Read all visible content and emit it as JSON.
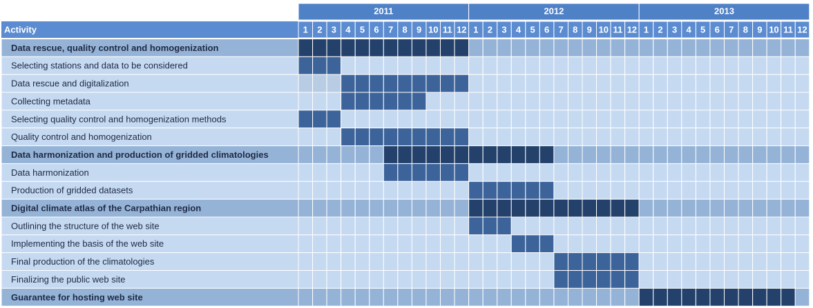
{
  "chart_data": {
    "type": "gantt",
    "header": {
      "activity_label": "Activity"
    },
    "years": [
      "2011",
      "2012",
      "2013"
    ],
    "months": [
      "1",
      "2",
      "3",
      "4",
      "5",
      "6",
      "7",
      "8",
      "9",
      "10",
      "11",
      "12"
    ],
    "colors": {
      "header_bg": "#5b8bd0",
      "year_bg": "#4f81c7",
      "group_row_bg": "#95b3d7",
      "row_bg": "#c5d9f1",
      "row_bg_light": "#dce6f2",
      "group_bar": "#24416b",
      "sub_bar": "#3d649a",
      "grid_line": "#ffffff",
      "light_block": "#b8cce4"
    },
    "activities": [
      {
        "label": "Data rescue, quality control and homogenization",
        "group": true,
        "start": 1,
        "end": 12
      },
      {
        "label": "Selecting stations and data to be considered",
        "group": false,
        "start": 1,
        "end": 3
      },
      {
        "label": "Data rescue and digitalization",
        "group": false,
        "start": 4,
        "end": 12,
        "light_start": 1,
        "light_end": 3
      },
      {
        "label": "Collecting metadata",
        "group": false,
        "start": 4,
        "end": 9
      },
      {
        "label": "Selecting quality control and homogenization methods",
        "group": false,
        "start": 1,
        "end": 3
      },
      {
        "label": "Quality control and homogenization",
        "group": false,
        "start": 4,
        "end": 12
      },
      {
        "label": "Data harmonization and production of gridded climatologies",
        "group": true,
        "start": 7,
        "end": 18
      },
      {
        "label": "Data harmonization",
        "group": false,
        "start": 7,
        "end": 12
      },
      {
        "label": "Production of gridded datasets",
        "group": false,
        "start": 13,
        "end": 18
      },
      {
        "label": "Digital climate atlas of the Carpathian region",
        "group": true,
        "start": 13,
        "end": 24
      },
      {
        "label": "Outlining the structure of the web site",
        "group": false,
        "start": 13,
        "end": 15
      },
      {
        "label": "Implementing the basis of the web site",
        "group": false,
        "start": 16,
        "end": 18
      },
      {
        "label": "Final production of the climatologies",
        "group": false,
        "start": 19,
        "end": 24
      },
      {
        "label": "Finalizing the public web site",
        "group": false,
        "start": 19,
        "end": 24
      },
      {
        "label": "Guarantee for hosting web site",
        "group": true,
        "start": 25,
        "end": 35
      }
    ]
  }
}
